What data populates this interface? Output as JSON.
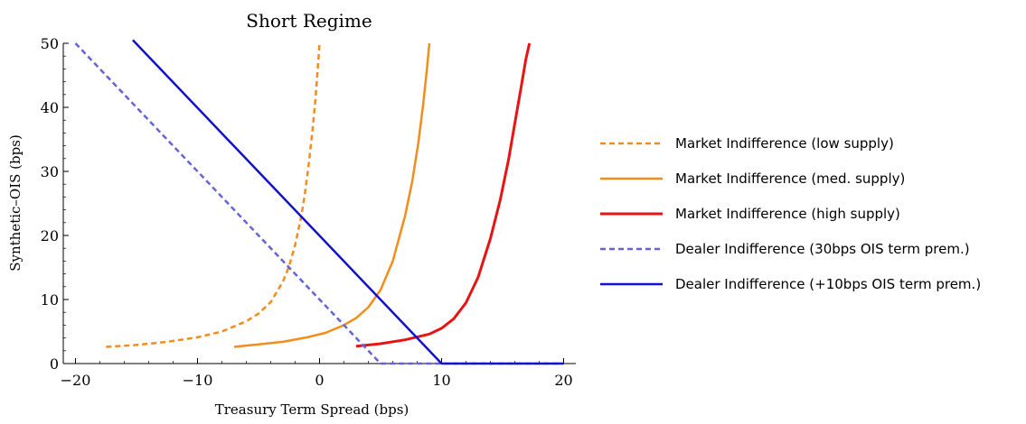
{
  "chart_data": {
    "type": "line",
    "title": "Short Regime",
    "xlabel": "Treasury Term Spread (bps)",
    "ylabel": "Synthetic–OIS (bps)",
    "xlim": [
      -21,
      21
    ],
    "ylim": [
      0,
      50
    ],
    "xticks": [
      -20,
      -10,
      0,
      10,
      20
    ],
    "yticks": [
      0,
      10,
      20,
      30,
      40,
      50
    ],
    "grid": false,
    "legend_position": "right",
    "series": [
      {
        "name": "Market Indifference (low supply)",
        "color": "#f28d1c",
        "dash": "dashed",
        "width": 2.5,
        "x": [
          -17.5,
          -15,
          -12.5,
          -10,
          -8,
          -6,
          -5,
          -4,
          -3,
          -2.5,
          -2,
          -1.5,
          -1.2,
          -0.9,
          -0.6,
          -0.35,
          -0.15,
          0
        ],
        "y": [
          2.6,
          2.9,
          3.4,
          4.1,
          5.0,
          6.6,
          7.8,
          9.6,
          12.8,
          15.2,
          18.5,
          23.0,
          26.5,
          31.0,
          36.0,
          41.0,
          46.0,
          50
        ]
      },
      {
        "name": "Market Indifference (med. supply)",
        "color": "#f28d1c",
        "dash": "solid",
        "width": 2.5,
        "x": [
          -7,
          -5,
          -3,
          -1,
          0.5,
          2,
          3,
          4,
          5,
          6,
          7,
          7.6,
          8.1,
          8.5,
          8.8,
          9.0
        ],
        "y": [
          2.6,
          3.0,
          3.4,
          4.1,
          4.8,
          6.0,
          7.1,
          8.8,
          11.5,
          16.0,
          23.0,
          28.5,
          34.5,
          40.5,
          46.0,
          50
        ]
      },
      {
        "name": "Market Indifference (high supply)",
        "color": "#e81313",
        "dash": "solid",
        "width": 3,
        "x": [
          3,
          5,
          7,
          9,
          10,
          11,
          12,
          13,
          14,
          14.8,
          15.5,
          16.0,
          16.5,
          16.9,
          17.2
        ],
        "y": [
          2.7,
          3.1,
          3.7,
          4.6,
          5.5,
          7.0,
          9.5,
          13.5,
          19.5,
          25.5,
          32.0,
          37.5,
          43.0,
          47.5,
          50
        ]
      },
      {
        "name": "Dealer Indifference (30bps OIS term prem.)",
        "color": "#6464d8",
        "dash": "dashed",
        "width": 2.5,
        "x": [
          -20,
          5,
          20
        ],
        "y": [
          50,
          0,
          0
        ]
      },
      {
        "name": "Dealer Indifference (+10bps OIS term prem.)",
        "color": "#1212c8",
        "dash": "solid",
        "width": 2.5,
        "x": [
          -15.3,
          10,
          20
        ],
        "y": [
          50.5,
          0,
          0
        ]
      }
    ]
  }
}
